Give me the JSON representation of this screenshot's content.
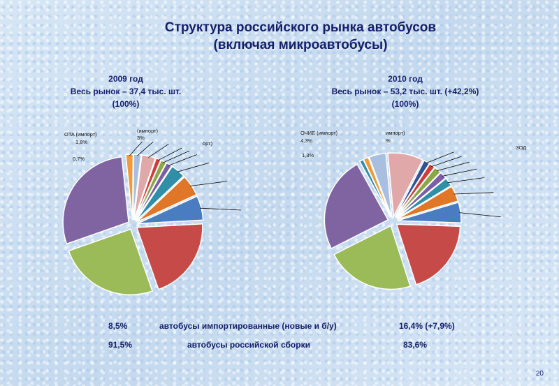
{
  "title": {
    "line1": "Структура российского рынка автобусов",
    "line2": "(включая микроавтобусы)"
  },
  "charts": [
    {
      "year": "2009 год",
      "market": "Весь рынок – 37,4 тыс. шт.",
      "share": "(100%)"
    },
    {
      "year": "2010 год",
      "market": "Весь рынок – 53,2 тыс. шт. (+42,2%)",
      "share": "(100%)"
    }
  ],
  "footer": {
    "row1": {
      "left": "8,5%",
      "label": "автобусы импортированные (новые и б/у)",
      "right": "16,4% (+7,9%)"
    },
    "row2": {
      "left": "91,5%",
      "label": "автобусы российской сборки",
      "right": "83,6%"
    }
  },
  "page_number": "20",
  "chart_data": [
    {
      "type": "pie",
      "title": "2009 год",
      "slices": [
        {
          "value": 1.8,
          "color": "#f29a3a"
        },
        {
          "value": 1.8,
          "color": "#a8bfe0"
        },
        {
          "value": 3.4,
          "color": "#e0a8a8"
        },
        {
          "value": 1.2,
          "color": "#cf3c3c"
        },
        {
          "value": 1.4,
          "color": "#8aa846"
        },
        {
          "value": 1.4,
          "color": "#7b5ea7"
        },
        {
          "value": 3.6,
          "color": "#2e8fa6"
        },
        {
          "value": 5.2,
          "color": "#e07628"
        },
        {
          "value": 6.0,
          "color": "#4a7cc2"
        },
        {
          "value": 20.5,
          "color": "#c64a48"
        },
        {
          "value": 25.0,
          "color": "#9bbb59"
        },
        {
          "value": 28.7,
          "color": "#8064a2"
        }
      ],
      "labels": [
        {
          "text": "OTA (импорт)"
        },
        {
          "text": "1,8%"
        },
        {
          "text": "(импорт)"
        },
        {
          "text": "3%"
        },
        {
          "text": "орт)"
        },
        {
          "text": "0,7%"
        }
      ]
    },
    {
      "type": "pie",
      "title": "2010 год",
      "slices": [
        {
          "value": 1.0,
          "color": "#2e8fa6"
        },
        {
          "value": 1.3,
          "color": "#f29a3a"
        },
        {
          "value": 4.3,
          "color": "#a8bfe0"
        },
        {
          "value": 9.0,
          "color": "#e0a8a8"
        },
        {
          "value": 1.5,
          "color": "#2f5597"
        },
        {
          "value": 1.5,
          "color": "#cf3c3c"
        },
        {
          "value": 1.8,
          "color": "#8aa846"
        },
        {
          "value": 1.8,
          "color": "#7b5ea7"
        },
        {
          "value": 2.2,
          "color": "#2e8fa6"
        },
        {
          "value": 4.0,
          "color": "#e07628"
        },
        {
          "value": 5.2,
          "color": "#4a7cc2"
        },
        {
          "value": 19.5,
          "color": "#c64a48"
        },
        {
          "value": 22.5,
          "color": "#9bbb59"
        },
        {
          "value": 24.4,
          "color": "#8064a2"
        }
      ],
      "labels": [
        {
          "text": "ОЧИЕ (импорт)"
        },
        {
          "text": "4,3%"
        },
        {
          "text": "импорт)"
        },
        {
          "text": "%"
        },
        {
          "text": "1,3%"
        },
        {
          "text": "ЗОД"
        }
      ]
    }
  ]
}
